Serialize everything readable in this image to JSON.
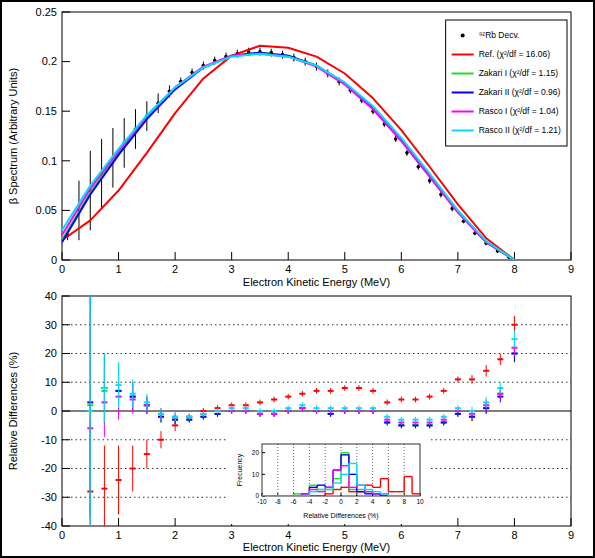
{
  "chart_data": [
    {
      "type": "line",
      "x_label": "Electron Kinetic Energy (MeV)",
      "y_label": "β Spectrum (Arbitrary Units)",
      "xlim": [
        0,
        9
      ],
      "xticks": [
        0,
        1,
        2,
        3,
        4,
        5,
        6,
        7,
        8,
        9
      ],
      "ylim": [
        0,
        0.25
      ],
      "yticks": [
        0,
        0.05,
        0.1,
        0.15,
        0.2,
        0.25
      ],
      "legend": "top-right",
      "series": [
        {
          "name": "⁹²Rb Decv.",
          "type": "scatter",
          "color": "#000000",
          "marker": "circle",
          "x": [
            0.1,
            0.3,
            0.5,
            0.7,
            0.9,
            1.1,
            1.3,
            1.5,
            1.7,
            1.9,
            2.1,
            2.3,
            2.5,
            2.7,
            2.9,
            3.1,
            3.3,
            3.5,
            3.7,
            3.9,
            4.1,
            4.3,
            4.5,
            4.7,
            4.9,
            5.1,
            5.3,
            5.5,
            5.7,
            5.9,
            6.1,
            6.3,
            6.5,
            6.7,
            6.9,
            7.1,
            7.3,
            7.5,
            7.7,
            7.9
          ],
          "values": [
            0.025,
            0.05,
            0.07,
            0.087,
            0.103,
            0.118,
            0.132,
            0.145,
            0.158,
            0.17,
            0.18,
            0.189,
            0.196,
            0.201,
            0.205,
            0.208,
            0.21,
            0.21,
            0.209,
            0.207,
            0.204,
            0.2,
            0.195,
            0.188,
            0.18,
            0.171,
            0.161,
            0.15,
            0.137,
            0.122,
            0.108,
            0.094,
            0.08,
            0.066,
            0.052,
            0.039,
            0.027,
            0.017,
            0.009,
            0.003
          ],
          "errors": [
            0.005,
            0.03,
            0.04,
            0.035,
            0.03,
            0.025,
            0.02,
            0.015,
            0.01,
            0.006,
            0.004,
            0.004,
            0.004,
            0.004,
            0.004,
            0.004,
            0.004,
            0.004,
            0.004,
            0.004,
            0.004,
            0.004,
            0.004,
            0.004,
            0.004,
            0.003,
            0.003,
            0.003,
            0.003,
            0.003,
            0.003,
            0.003,
            0.003,
            0.003,
            0.003,
            0.002,
            0.002,
            0.002,
            0.002,
            0.002
          ]
        },
        {
          "name": "Ref. (χ²/df = 16.06)",
          "type": "line",
          "color": "#ff0000",
          "x": [
            0,
            0.5,
            1,
            1.5,
            2,
            2.5,
            3,
            3.5,
            4,
            4.5,
            5,
            5.5,
            6,
            6.5,
            7,
            7.5,
            8
          ],
          "values": [
            0.02,
            0.04,
            0.07,
            0.108,
            0.148,
            0.183,
            0.206,
            0.216,
            0.214,
            0.205,
            0.188,
            0.163,
            0.131,
            0.094,
            0.056,
            0.022,
            0.0
          ]
        },
        {
          "name": "Zakari I (χ²/df = 1.15)",
          "type": "line",
          "color": "#22dd22",
          "x": [
            0,
            0.5,
            1,
            1.5,
            2,
            2.5,
            3,
            3.5,
            4,
            4.5,
            5,
            5.5,
            6,
            6.5,
            7,
            7.5,
            8
          ],
          "values": [
            0.02,
            0.068,
            0.108,
            0.143,
            0.173,
            0.194,
            0.206,
            0.209,
            0.206,
            0.196,
            0.178,
            0.153,
            0.12,
            0.084,
            0.048,
            0.018,
            0.0
          ]
        },
        {
          "name": "Zakari II (χ²/df = 0.96)",
          "type": "line",
          "color": "#0000ff",
          "x": [
            0,
            0.5,
            1,
            1.5,
            2,
            2.5,
            3,
            3.5,
            4,
            4.5,
            5,
            5.5,
            6,
            6.5,
            7,
            7.5,
            8
          ],
          "values": [
            0.018,
            0.066,
            0.106,
            0.142,
            0.172,
            0.194,
            0.206,
            0.209,
            0.206,
            0.196,
            0.178,
            0.153,
            0.121,
            0.085,
            0.049,
            0.018,
            0.0
          ]
        },
        {
          "name": "Rasco I (χ²/df = 1.04)",
          "type": "line",
          "color": "#ff00ff",
          "x": [
            0,
            0.5,
            1,
            1.5,
            2,
            2.5,
            3,
            3.5,
            4,
            4.5,
            5,
            5.5,
            6,
            6.5,
            7,
            7.5,
            8
          ],
          "values": [
            0.025,
            0.072,
            0.11,
            0.145,
            0.174,
            0.195,
            0.206,
            0.208,
            0.205,
            0.195,
            0.177,
            0.152,
            0.12,
            0.084,
            0.048,
            0.018,
            0.0
          ]
        },
        {
          "name": "Rasco II (χ²/df = 1.21)",
          "type": "line",
          "color": "#00e0f0",
          "x": [
            0,
            0.5,
            1,
            1.5,
            2,
            2.5,
            3,
            3.5,
            4,
            4.5,
            5,
            5.5,
            6,
            6.5,
            7,
            7.5,
            8
          ],
          "values": [
            0.03,
            0.075,
            0.112,
            0.146,
            0.174,
            0.194,
            0.205,
            0.208,
            0.205,
            0.196,
            0.179,
            0.155,
            0.123,
            0.087,
            0.05,
            0.019,
            0.0
          ]
        }
      ]
    },
    {
      "type": "scatter",
      "x_label": "Electron Kinetic Energy (MeV)",
      "y_label": "Relative Differences (%)",
      "xlim": [
        0,
        9
      ],
      "xticks": [
        0,
        1,
        2,
        3,
        4,
        5,
        6,
        7,
        8,
        9
      ],
      "ylim": [
        -40,
        40
      ],
      "yticks": [
        -40,
        -30,
        -20,
        -10,
        0,
        10,
        20,
        30,
        40
      ],
      "grid": true,
      "x": [
        0.5,
        0.75,
        1,
        1.25,
        1.5,
        1.75,
        2,
        2.25,
        2.5,
        2.75,
        3,
        3.25,
        3.5,
        3.75,
        4,
        4.25,
        4.5,
        4.75,
        5,
        5.25,
        5.5,
        5.75,
        6,
        6.25,
        6.5,
        6.75,
        7,
        7.25,
        7.5,
        7.75,
        8
      ],
      "series": [
        {
          "color": "#ff0000",
          "marker": "cross",
          "values": [
            -28,
            -27,
            -24,
            -20,
            -15,
            -10,
            -5,
            -2,
            0,
            1,
            2,
            2,
            3,
            4,
            5,
            6,
            7,
            7,
            8,
            8,
            7,
            3,
            4,
            4,
            5,
            7,
            11,
            11,
            14,
            18,
            30
          ],
          "errors": [
            25,
            15,
            12,
            8,
            5,
            3,
            2,
            1,
            1,
            1,
            1,
            1,
            1,
            1,
            1,
            1,
            1,
            1,
            1,
            1,
            1,
            1,
            1,
            1,
            1,
            1,
            1,
            1.5,
            2,
            2,
            3
          ]
        },
        {
          "color": "#22dd22",
          "marker": "cross",
          "values": [
            2,
            7,
            7,
            5,
            2,
            -2,
            -3,
            -3,
            -2,
            -1,
            0,
            0,
            -1,
            -1,
            0,
            1,
            0,
            -1,
            0,
            0,
            0,
            -4,
            -5,
            -5,
            -5,
            -4,
            -1,
            -2,
            1,
            6,
            20
          ],
          "errors": [
            40,
            12,
            8,
            5,
            3,
            2,
            1.5,
            1,
            1,
            1,
            1,
            1,
            1,
            1,
            1,
            1,
            1,
            1,
            1,
            1,
            1,
            1,
            1,
            1,
            1,
            1,
            1,
            1.5,
            2,
            2,
            3
          ]
        },
        {
          "color": "#0000ff",
          "marker": "cross",
          "values": [
            3,
            8,
            7,
            5,
            2,
            -2,
            -3,
            -3,
            -2,
            -1,
            0,
            0,
            -1,
            -1,
            0,
            1,
            0,
            -1,
            0,
            0,
            0,
            -4,
            -5,
            -5,
            -5,
            -4,
            -1,
            -2,
            1,
            5,
            20
          ],
          "errors": [
            40,
            12,
            8,
            5,
            3,
            2,
            1.5,
            1,
            1,
            1,
            1,
            1,
            1,
            1,
            1,
            1,
            1,
            1,
            1,
            1,
            1,
            1,
            1,
            1,
            1,
            1,
            1,
            1.5,
            2,
            2,
            3
          ]
        },
        {
          "color": "#ff00ff",
          "marker": "cross",
          "values": [
            -6,
            3,
            5,
            4,
            2,
            -1,
            -2,
            -2,
            -1,
            0,
            0,
            0,
            -1,
            -1,
            0,
            1,
            0,
            0,
            0,
            0,
            0,
            -3,
            -4,
            -4,
            -4,
            -3,
            0,
            -1,
            2,
            6,
            22
          ],
          "errors": [
            40,
            12,
            8,
            5,
            3,
            2,
            1.5,
            1,
            1,
            1,
            1,
            1,
            1,
            1,
            1,
            1,
            1,
            1,
            1,
            1,
            1,
            1,
            1,
            1,
            1,
            1,
            1,
            1.5,
            2,
            2,
            3
          ]
        },
        {
          "color": "#00e0f0",
          "marker": "cross",
          "values": [
            0,
            8,
            9,
            6,
            3,
            -1,
            -2,
            -2,
            -1,
            0,
            1,
            1,
            0,
            0,
            1,
            2,
            1,
            1,
            1,
            1,
            1,
            -2,
            -3,
            -3,
            -3,
            -2,
            1,
            0,
            3,
            8,
            25
          ],
          "errors": [
            40,
            12,
            8,
            5,
            3,
            2,
            1.5,
            1,
            1,
            1,
            1,
            1,
            1,
            1,
            1,
            1,
            1,
            1,
            1,
            1,
            1,
            1,
            1,
            1,
            1,
            1,
            1,
            1.5,
            2,
            2,
            3
          ]
        }
      ]
    },
    {
      "type": "histogram",
      "x_label": "Relative Differences (%)",
      "y_label": "Frecuency",
      "xlim": [
        -10,
        10
      ],
      "xticks": [
        -10,
        -8,
        -6,
        -4,
        -2,
        0,
        2,
        4,
        6,
        8,
        10
      ],
      "ylim": [
        0,
        24
      ],
      "yticks": [
        0,
        10,
        20
      ],
      "grid": true,
      "bins": [
        -10,
        -9,
        -8,
        -7,
        -6,
        -5,
        -4,
        -3,
        -2,
        -1,
        0,
        1,
        2,
        3,
        4,
        5,
        6,
        7,
        8,
        9,
        10
      ],
      "series": [
        {
          "color": "#ff0000",
          "values": [
            0,
            0,
            0,
            0,
            0,
            0,
            0,
            0,
            1,
            3,
            4,
            2,
            2,
            5,
            4,
            8,
            2,
            2,
            9,
            1
          ]
        },
        {
          "color": "#22dd22",
          "values": [
            0,
            0,
            0,
            0,
            1,
            0,
            5,
            3,
            3,
            8,
            20,
            3,
            3,
            2,
            1,
            0,
            0,
            0,
            0,
            0
          ]
        },
        {
          "color": "#0000ff",
          "values": [
            0,
            0,
            0,
            0,
            0,
            1,
            4,
            5,
            4,
            12,
            19,
            10,
            2,
            1,
            1,
            0,
            0,
            0,
            0,
            0
          ]
        },
        {
          "color": "#ff00ff",
          "values": [
            0,
            0,
            0,
            0,
            0,
            1,
            3,
            2,
            4,
            12,
            14,
            4,
            5,
            2,
            1,
            1,
            0,
            0,
            0,
            0
          ]
        },
        {
          "color": "#00e0f0",
          "values": [
            0,
            0,
            0,
            0,
            0,
            0,
            2,
            3,
            3,
            6,
            10,
            15,
            5,
            3,
            2,
            1,
            0,
            0,
            0,
            0
          ]
        }
      ]
    }
  ]
}
